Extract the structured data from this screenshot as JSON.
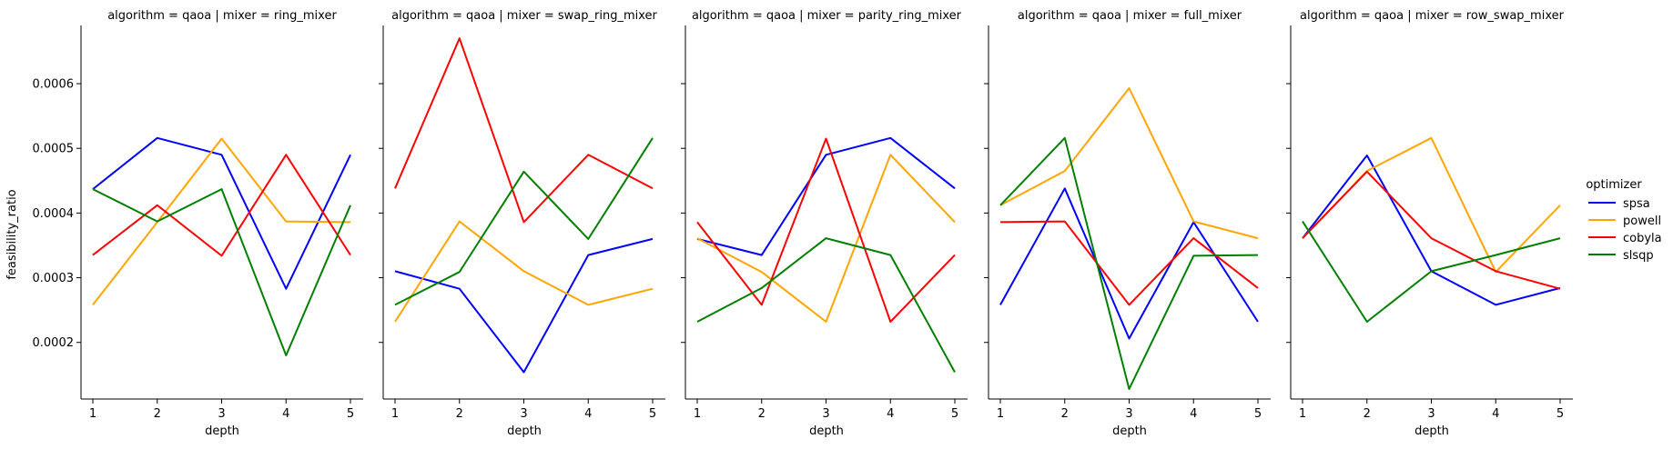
{
  "chart_data": {
    "type": "line",
    "layout": "facet-grid",
    "x": [
      1,
      2,
      3,
      4,
      5
    ],
    "xlabel": "depth",
    "ylabel": "feasibility_ratio",
    "ylim": [
      0.0001125,
      0.00069
    ],
    "yticks": [
      0.0002,
      0.0003,
      0.0004,
      0.0005,
      0.0006
    ],
    "ytick_labels": [
      "0.0002",
      "0.0003",
      "0.0004",
      "0.0005",
      "0.0006"
    ],
    "xticks": [
      1,
      2,
      3,
      4,
      5
    ],
    "xtick_labels": [
      "1",
      "2",
      "3",
      "4",
      "5"
    ],
    "grid": false,
    "legend": {
      "title": "optimizer",
      "placement": "right",
      "entries": [
        {
          "name": "spsa",
          "color": "#0000ff"
        },
        {
          "name": "powell",
          "color": "#ffa500"
        },
        {
          "name": "cobyla",
          "color": "#ff0000"
        },
        {
          "name": "slsqp",
          "color": "#008000"
        }
      ]
    },
    "panels": [
      {
        "title": "algorithm = qaoa | mixer = ring_mixer",
        "series": [
          {
            "name": "spsa",
            "values": [
              0.000437,
              0.000516,
              0.00049,
              0.000283,
              0.00049
            ]
          },
          {
            "name": "powell",
            "values": [
              0.000258,
              0.000386,
              0.000515,
              0.000387,
              0.000386
            ]
          },
          {
            "name": "cobyla",
            "values": [
              0.000335,
              0.000412,
              0.000334,
              0.00049,
              0.000335
            ]
          },
          {
            "name": "slsqp",
            "values": [
              0.000437,
              0.000387,
              0.000437,
              0.00018,
              0.000412
            ]
          }
        ]
      },
      {
        "title": "algorithm = qaoa | mixer = swap_ring_mixer",
        "series": [
          {
            "name": "spsa",
            "values": [
              0.00031,
              0.000283,
              0.000154,
              0.000335,
              0.00036
            ]
          },
          {
            "name": "powell",
            "values": [
              0.000232,
              0.000387,
              0.00031,
              0.000258,
              0.000283
            ]
          },
          {
            "name": "cobyla",
            "values": [
              0.000438,
              0.00067,
              0.000386,
              0.00049,
              0.000438
            ]
          },
          {
            "name": "slsqp",
            "values": [
              0.000258,
              0.000309,
              0.000464,
              0.00036,
              0.000516
            ]
          }
        ]
      },
      {
        "title": "algorithm = qaoa | mixer = parity_ring_mixer",
        "series": [
          {
            "name": "spsa",
            "values": [
              0.00036,
              0.000335,
              0.00049,
              0.000516,
              0.000438
            ]
          },
          {
            "name": "powell",
            "values": [
              0.000361,
              0.000309,
              0.000232,
              0.00049,
              0.000386
            ]
          },
          {
            "name": "cobyla",
            "values": [
              0.000386,
              0.000258,
              0.000515,
              0.000232,
              0.000335
            ]
          },
          {
            "name": "slsqp",
            "values": [
              0.000232,
              0.000284,
              0.000361,
              0.000335,
              0.000154
            ]
          }
        ]
      },
      {
        "title": "algorithm = qaoa | mixer = full_mixer",
        "series": [
          {
            "name": "spsa",
            "values": [
              0.000258,
              0.000438,
              0.000206,
              0.000386,
              0.000232
            ]
          },
          {
            "name": "powell",
            "values": [
              0.000412,
              0.000465,
              0.000593,
              0.000387,
              0.000361
            ]
          },
          {
            "name": "cobyla",
            "values": [
              0.000386,
              0.000387,
              0.000258,
              0.000361,
              0.000284
            ]
          },
          {
            "name": "slsqp",
            "values": [
              0.000412,
              0.000516,
              0.000128,
              0.000334,
              0.000335
            ]
          }
        ]
      },
      {
        "title": "algorithm = qaoa | mixer = row_swap_mixer",
        "series": [
          {
            "name": "spsa",
            "values": [
              0.000361,
              0.000489,
              0.00031,
              0.000258,
              0.000284
            ]
          },
          {
            "name": "powell",
            "values": [
              0.000361,
              0.000465,
              0.000516,
              0.000309,
              0.000412
            ]
          },
          {
            "name": "cobyla",
            "values": [
              0.000361,
              0.000464,
              0.000361,
              0.00031,
              0.000283
            ]
          },
          {
            "name": "slsqp",
            "values": [
              0.000387,
              0.000232,
              0.00031,
              0.000335,
              0.000361
            ]
          }
        ]
      }
    ]
  }
}
